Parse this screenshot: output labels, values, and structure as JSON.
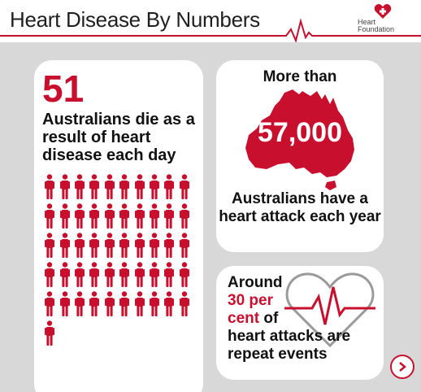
{
  "header": {
    "title": "Heart Disease By Numbers",
    "logo_line1": "Heart",
    "logo_line2": "Foundation"
  },
  "left_card": {
    "number": "51",
    "text": "Australians die as a result of heart disease each day",
    "figure_count": 51
  },
  "right_top_card": {
    "lead": "More than",
    "number": "57,000",
    "text": "Australians have a heart attack each year"
  },
  "right_bottom_card": {
    "line1": "Around",
    "highlight1": "30 per",
    "highlight2": "cent",
    "line3": "of",
    "line4": "heart attacks are",
    "line5": "repeat events"
  },
  "colors": {
    "accent": "#c8102e",
    "background": "#d8d8d8",
    "card": "#ffffff"
  },
  "nav": {
    "next_icon": "chevron-right-icon"
  }
}
